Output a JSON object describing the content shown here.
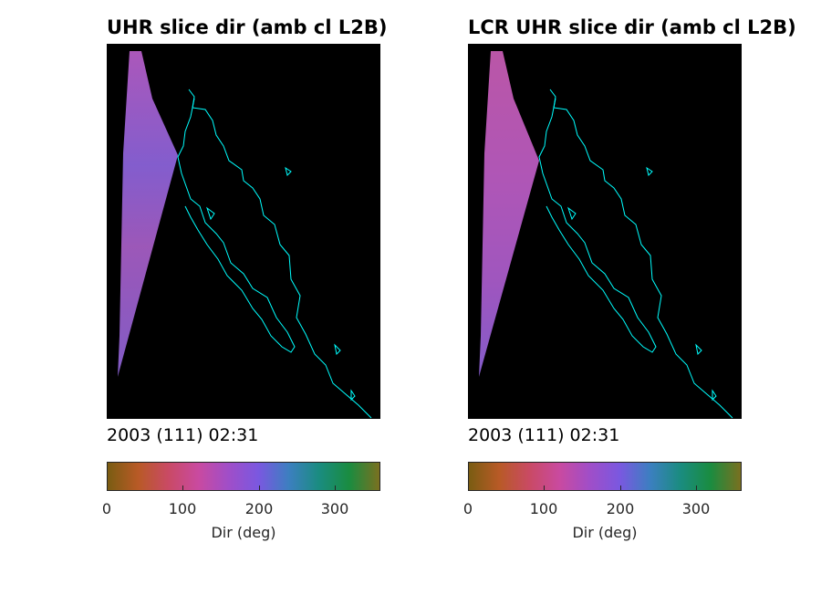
{
  "panels": [
    {
      "title": "UHR slice dir (amb cl L2B)",
      "timestamp": "2003 (111) 02:31",
      "colorbar": {
        "label": "Dir (deg)",
        "ticks": [
          "0",
          "100",
          "200",
          "300"
        ],
        "range": [
          0,
          360
        ]
      }
    },
    {
      "title": "LCR UHR slice dir (amb cl L2B)",
      "timestamp": "2003 (111) 02:31",
      "colorbar": {
        "label": "Dir (deg)",
        "ticks": [
          "0",
          "100",
          "200",
          "300"
        ],
        "range": [
          0,
          360
        ]
      }
    }
  ],
  "colors": {
    "map_background": "#000000",
    "coastline": "#00ffff",
    "swath_left": "#9a5fc8",
    "swath_right": "#b35cbf",
    "colormap": [
      "#7a5c12",
      "#b85a26",
      "#c94a64",
      "#c94aa0",
      "#a04ec8",
      "#7a58e0",
      "#3c7fc0",
      "#1a8c80",
      "#1a8c40",
      "#7a7020"
    ]
  },
  "chart_data": [
    {
      "type": "heatmap",
      "title": "UHR slice dir (amb cl L2B)",
      "annotation": "2003 (111) 02:31",
      "colorbar_label": "Dir (deg)",
      "colorbar_range": [
        0,
        360
      ],
      "colorbar_ticks": [
        0,
        100,
        200,
        300
      ]
    },
    {
      "type": "heatmap",
      "title": "LCR UHR slice dir (amb cl L2B)",
      "annotation": "2003 (111) 02:31",
      "colorbar_label": "Dir (deg)",
      "colorbar_range": [
        0,
        360
      ],
      "colorbar_ticks": [
        0,
        100,
        200,
        300
      ]
    }
  ]
}
